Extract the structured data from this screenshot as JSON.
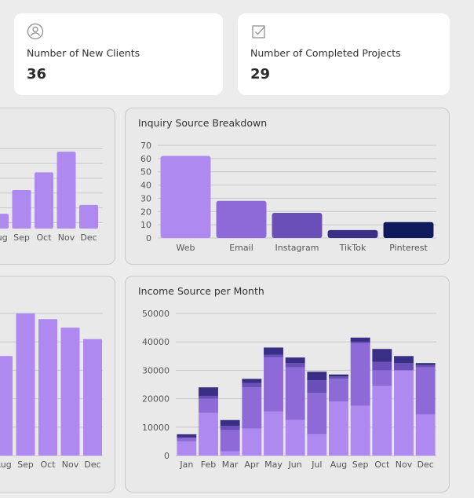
{
  "cards": {
    "new_clients": {
      "label": "Number of New Clients",
      "value": "36",
      "icon": "user-icon"
    },
    "completed_projects": {
      "label": "Number of Completed Projects",
      "value": "29",
      "icon": "checkbox-icon"
    }
  },
  "colors": {
    "light": "#ae8af0",
    "mid": "#8d6ad8",
    "dark": "#6b4fb8",
    "navy": "#3a2f86",
    "deep": "#0e1a5c",
    "grid": "#c8c8c8"
  },
  "chart_data": [
    {
      "id": "left-top",
      "type": "bar",
      "title": "",
      "categories": [
        "Aug",
        "Sep",
        "Oct",
        "Nov",
        "Dec"
      ],
      "values": [
        1.0,
        2.6,
        3.8,
        5.2,
        1.6
      ],
      "ylim": [
        0,
        6
      ]
    },
    {
      "id": "inquiry",
      "type": "bar",
      "title": "Inquiry Source Breakdown",
      "categories": [
        "Web",
        "Email",
        "Instagram",
        "TikTok",
        "Pinterest"
      ],
      "values": [
        62,
        28,
        19,
        6,
        12
      ],
      "ylim": [
        0,
        70
      ],
      "yticks": [
        0,
        10,
        20,
        30,
        40,
        50,
        60,
        70
      ]
    },
    {
      "id": "left-bottom",
      "type": "bar",
      "title": "",
      "categories": [
        "Aug",
        "Sep",
        "Oct",
        "Nov",
        "Dec"
      ],
      "values": [
        35,
        50,
        48,
        45,
        41
      ],
      "ylim": [
        0,
        50
      ]
    },
    {
      "id": "income",
      "type": "bar",
      "title": "Income Source per Month",
      "stacked": true,
      "categories": [
        "Jan",
        "Feb",
        "Mar",
        "Apr",
        "May",
        "Jun",
        "Jul",
        "Aug",
        "Sep",
        "Oct",
        "Nov",
        "Dec"
      ],
      "yticks": [
        0,
        10000,
        20000,
        30000,
        40000,
        50000
      ],
      "ylim": [
        0,
        50000
      ],
      "series": [
        {
          "values": [
            5000,
            15000,
            1500,
            9500,
            15500,
            12500,
            7500,
            19000,
            17500,
            24500,
            30000,
            14500
          ]
        },
        {
          "values": [
            1000,
            5000,
            7500,
            14500,
            19000,
            18500,
            14500,
            8000,
            22000,
            5500,
            0,
            16500
          ]
        },
        {
          "values": [
            500,
            1000,
            1500,
            1500,
            1000,
            1500,
            4500,
            1000,
            500,
            3000,
            2500,
            1000
          ]
        },
        {
          "values": [
            1000,
            3000,
            2000,
            1500,
            2500,
            2000,
            3000,
            0,
            1500,
            4500,
            2500,
            0
          ]
        },
        {
          "values": [
            0,
            0,
            0,
            0,
            0,
            0,
            0,
            500,
            0,
            0,
            0,
            500
          ]
        }
      ]
    }
  ]
}
